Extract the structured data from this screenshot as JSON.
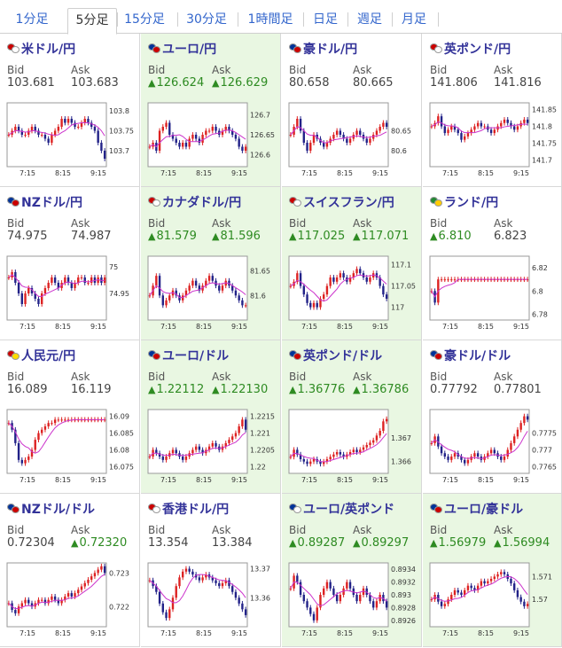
{
  "tabs": [
    {
      "label": "1分足",
      "active": false
    },
    {
      "label": "5分足",
      "active": true
    },
    {
      "label": "15分足",
      "active": false
    },
    {
      "label": "30分足",
      "active": false
    },
    {
      "label": "1時間足",
      "active": false
    },
    {
      "label": "日足",
      "active": false
    },
    {
      "label": "週足",
      "active": false
    },
    {
      "label": "月足",
      "active": false
    }
  ],
  "labels": {
    "bid": "Bid",
    "ask": "Ask"
  },
  "x_ticks": [
    "7:15",
    "8:15",
    "9:15"
  ],
  "colors": {
    "up_candle": "#dd2222",
    "down_candle": "#222288",
    "ma_line": "#cc33cc",
    "ma_line2": "#33aaaa",
    "highlight": "#e9f7e2"
  },
  "pairs": [
    {
      "name": "米ドル/円",
      "flags": [
        "#cc0000",
        "#ffffff"
      ],
      "bid": "103.681",
      "ask": "103.683",
      "bid_up": false,
      "ask_up": false,
      "hl": false,
      "chart_data": {
        "type": "candlestick",
        "y_ticks": [
          "103.8",
          "103.75",
          "103.7"
        ],
        "ylim": [
          103.66,
          103.82
        ],
        "close": [
          103.74,
          103.75,
          103.76,
          103.75,
          103.74,
          103.74,
          103.75,
          103.76,
          103.75,
          103.74,
          103.74,
          103.73,
          103.72,
          103.74,
          103.75,
          103.76,
          103.78,
          103.77,
          103.78,
          103.77,
          103.76,
          103.76,
          103.77,
          103.78,
          103.77,
          103.76,
          103.75,
          103.72,
          103.7,
          103.68
        ],
        "ma": true
      }
    },
    {
      "name": "ユーロ/円",
      "flags": [
        "#003399",
        "#cc0000"
      ],
      "bid": "126.624",
      "ask": "126.629",
      "bid_up": true,
      "ask_up": true,
      "hl": true,
      "chart_data": {
        "type": "candlestick",
        "y_ticks": [
          "126.7",
          "126.65",
          "126.6"
        ],
        "ylim": [
          126.57,
          126.73
        ],
        "close": [
          126.62,
          126.63,
          126.61,
          126.66,
          126.67,
          126.68,
          126.65,
          126.64,
          126.63,
          126.62,
          126.63,
          126.62,
          126.64,
          126.65,
          126.64,
          126.63,
          126.65,
          126.66,
          126.66,
          126.67,
          126.66,
          126.65,
          126.66,
          126.67,
          126.66,
          126.65,
          126.64,
          126.62,
          126.61,
          126.62
        ],
        "ma": true
      }
    },
    {
      "name": "豪ドル/円",
      "flags": [
        "#003399",
        "#cc0000"
      ],
      "bid": "80.658",
      "ask": "80.665",
      "bid_up": false,
      "ask_up": false,
      "hl": false,
      "chart_data": {
        "type": "candlestick",
        "y_ticks": [
          "80.65",
          "80.6"
        ],
        "ylim": [
          80.56,
          80.72
        ],
        "close": [
          80.64,
          80.66,
          80.68,
          80.65,
          80.62,
          80.6,
          80.62,
          80.64,
          80.63,
          80.62,
          80.61,
          80.62,
          80.63,
          80.64,
          80.65,
          80.64,
          80.63,
          80.62,
          80.63,
          80.64,
          80.65,
          80.64,
          80.63,
          80.62,
          80.63,
          80.64,
          80.65,
          80.66,
          80.67,
          80.66
        ],
        "ma": true
      }
    },
    {
      "name": "英ポンド/円",
      "flags": [
        "#cc0000",
        "#ffffff"
      ],
      "bid": "141.806",
      "ask": "141.816",
      "bid_up": false,
      "ask_up": false,
      "hl": false,
      "chart_data": {
        "type": "candlestick",
        "y_ticks": [
          "141.85",
          "141.8",
          "141.75",
          "141.7"
        ],
        "ylim": [
          141.68,
          141.87
        ],
        "close": [
          141.8,
          141.81,
          141.83,
          141.8,
          141.78,
          141.79,
          141.8,
          141.79,
          141.78,
          141.76,
          141.77,
          141.78,
          141.79,
          141.8,
          141.81,
          141.8,
          141.8,
          141.79,
          141.78,
          141.79,
          141.8,
          141.81,
          141.82,
          141.81,
          141.8,
          141.79,
          141.8,
          141.81,
          141.82,
          141.81
        ],
        "ma": true
      }
    },
    {
      "name": "NZドル/円",
      "flags": [
        "#003399",
        "#cc0000"
      ],
      "bid": "74.975",
      "ask": "74.987",
      "bid_up": false,
      "ask_up": false,
      "hl": false,
      "chart_data": {
        "type": "candlestick",
        "y_ticks": [
          "75",
          "74.95"
        ],
        "ylim": [
          74.9,
          75.02
        ],
        "close": [
          74.98,
          74.99,
          74.97,
          74.95,
          74.93,
          74.95,
          74.96,
          74.95,
          74.94,
          74.93,
          74.95,
          74.96,
          74.97,
          74.98,
          74.97,
          74.96,
          74.97,
          74.98,
          74.97,
          74.96,
          74.97,
          74.98,
          74.98,
          74.97,
          74.97,
          74.98,
          74.97,
          74.98,
          74.97,
          74.98
        ],
        "ma": true
      }
    },
    {
      "name": "カナダドル/円",
      "flags": [
        "#cc0000",
        "#ffffff"
      ],
      "bid": "81.579",
      "ask": "81.596",
      "bid_up": true,
      "ask_up": true,
      "hl": true,
      "chart_data": {
        "type": "candlestick",
        "y_ticks": [
          "81.65",
          "81.6"
        ],
        "ylim": [
          81.55,
          81.68
        ],
        "close": [
          81.6,
          81.62,
          81.64,
          81.6,
          81.58,
          81.59,
          81.6,
          81.61,
          81.6,
          81.59,
          81.6,
          81.61,
          81.62,
          81.63,
          81.62,
          81.61,
          81.62,
          81.63,
          81.64,
          81.63,
          81.62,
          81.61,
          81.62,
          81.63,
          81.62,
          81.61,
          81.6,
          81.59,
          81.58,
          81.58
        ],
        "ma": true
      }
    },
    {
      "name": "スイスフラン/円",
      "flags": [
        "#cc0000",
        "#ffffff"
      ],
      "bid": "117.025",
      "ask": "117.071",
      "bid_up": true,
      "ask_up": true,
      "hl": true,
      "chart_data": {
        "type": "candlestick",
        "y_ticks": [
          "117.1",
          "117.05",
          "117"
        ],
        "ylim": [
          116.97,
          117.12
        ],
        "close": [
          117.05,
          117.06,
          117.08,
          117.05,
          117.03,
          117.01,
          117.0,
          117.01,
          117.0,
          117.02,
          117.03,
          117.05,
          117.07,
          117.06,
          117.07,
          117.08,
          117.07,
          117.06,
          117.07,
          117.08,
          117.09,
          117.08,
          117.07,
          117.06,
          117.07,
          117.08,
          117.07,
          117.05,
          117.03,
          117.02
        ],
        "ma": true
      }
    },
    {
      "name": "ランド/円",
      "flags": [
        "#228833",
        "#ffcc00"
      ],
      "bid": "6.810",
      "ask": "6.823",
      "bid_up": true,
      "ask_up": false,
      "hl": false,
      "chart_data": {
        "type": "candlestick",
        "y_ticks": [
          "6.82",
          "6.8",
          "6.78"
        ],
        "ylim": [
          6.775,
          6.83
        ],
        "close": [
          6.8,
          6.79,
          6.81,
          6.81,
          6.81,
          6.81,
          6.81,
          6.81,
          6.81,
          6.81,
          6.81,
          6.81,
          6.81,
          6.81,
          6.81,
          6.81,
          6.81,
          6.81,
          6.81,
          6.81,
          6.81,
          6.81,
          6.81,
          6.81,
          6.81,
          6.81,
          6.81,
          6.81,
          6.81,
          6.81
        ],
        "ma": true
      }
    },
    {
      "name": "人民元/円",
      "flags": [
        "#cc0000",
        "#ffdd00"
      ],
      "bid": "16.089",
      "ask": "16.119",
      "bid_up": false,
      "ask_up": false,
      "hl": false,
      "chart_data": {
        "type": "candlestick",
        "y_ticks": [
          "16.09",
          "16.085",
          "16.08",
          "16.075"
        ],
        "ylim": [
          16.073,
          16.092
        ],
        "close": [
          16.088,
          16.086,
          16.082,
          16.077,
          16.076,
          16.077,
          16.078,
          16.08,
          16.083,
          16.085,
          16.086,
          16.087,
          16.088,
          16.088,
          16.089,
          16.089,
          16.089,
          16.089,
          16.089,
          16.089,
          16.089,
          16.089,
          16.089,
          16.089,
          16.089,
          16.089,
          16.089,
          16.089,
          16.089,
          16.089
        ],
        "ma": true
      }
    },
    {
      "name": "ユーロ/ドル",
      "flags": [
        "#003399",
        "#cc0000"
      ],
      "bid": "1.22112",
      "ask": "1.22130",
      "bid_up": true,
      "ask_up": true,
      "hl": true,
      "chart_data": {
        "type": "candlestick",
        "y_ticks": [
          "1.2215",
          "1.221",
          "1.2205",
          "1.22"
        ],
        "ylim": [
          1.2198,
          1.2217
        ],
        "close": [
          1.2203,
          1.2205,
          1.2204,
          1.2203,
          1.2202,
          1.2203,
          1.2204,
          1.2205,
          1.2204,
          1.2203,
          1.2202,
          1.2203,
          1.2204,
          1.2205,
          1.2206,
          1.2205,
          1.2204,
          1.2205,
          1.2206,
          1.2207,
          1.2206,
          1.2205,
          1.2206,
          1.2207,
          1.2208,
          1.2209,
          1.221,
          1.2212,
          1.2214,
          1.2211
        ],
        "ma": true
      }
    },
    {
      "name": "英ポンド/ドル",
      "flags": [
        "#003399",
        "#cc0000"
      ],
      "bid": "1.36776",
      "ask": "1.36786",
      "bid_up": true,
      "ask_up": true,
      "hl": true,
      "chart_data": {
        "type": "candlestick",
        "y_ticks": [
          "1.367",
          "1.366"
        ],
        "ylim": [
          1.3655,
          1.3682
        ],
        "close": [
          1.3662,
          1.3665,
          1.3663,
          1.3661,
          1.366,
          1.3659,
          1.366,
          1.3661,
          1.366,
          1.3659,
          1.366,
          1.3661,
          1.3662,
          1.3663,
          1.3664,
          1.3663,
          1.3662,
          1.3663,
          1.3664,
          1.3665,
          1.3664,
          1.3665,
          1.3666,
          1.3667,
          1.3668,
          1.3669,
          1.3671,
          1.3673,
          1.3677,
          1.3678
        ],
        "ma": true
      }
    },
    {
      "name": "豪ドル/ドル",
      "flags": [
        "#003399",
        "#cc0000"
      ],
      "bid": "0.77792",
      "ask": "0.77801",
      "bid_up": false,
      "ask_up": false,
      "hl": false,
      "chart_data": {
        "type": "candlestick",
        "y_ticks": [
          "0.7775",
          "0.777",
          "0.7765"
        ],
        "ylim": [
          0.7763,
          0.7782
        ],
        "close": [
          0.7772,
          0.7774,
          0.7771,
          0.7769,
          0.7768,
          0.7767,
          0.7768,
          0.7769,
          0.7768,
          0.7767,
          0.7766,
          0.7767,
          0.7768,
          0.7769,
          0.7768,
          0.7767,
          0.7768,
          0.7769,
          0.777,
          0.7769,
          0.7768,
          0.7767,
          0.7768,
          0.777,
          0.7772,
          0.7774,
          0.7776,
          0.7778,
          0.778,
          0.7779
        ],
        "ma": true
      }
    },
    {
      "name": "NZドル/ドル",
      "flags": [
        "#003399",
        "#cc0000"
      ],
      "bid": "0.72304",
      "ask": "0.72320",
      "bid_up": false,
      "ask_up": true,
      "hl": false,
      "chart_data": {
        "type": "candlestick",
        "y_ticks": [
          "0.723",
          "0.722"
        ],
        "ylim": [
          0.7214,
          0.7233
        ],
        "close": [
          0.7221,
          0.7219,
          0.7218,
          0.722,
          0.7221,
          0.7222,
          0.7221,
          0.722,
          0.7221,
          0.7222,
          0.7222,
          0.7221,
          0.7222,
          0.7223,
          0.7222,
          0.7221,
          0.7222,
          0.7223,
          0.7224,
          0.7223,
          0.7224,
          0.7225,
          0.7226,
          0.7227,
          0.7228,
          0.7229,
          0.723,
          0.7231,
          0.7232,
          0.723
        ],
        "ma": true
      }
    },
    {
      "name": "香港ドル/円",
      "flags": [
        "#cc0000",
        "#ffffff"
      ],
      "bid": "13.354",
      "ask": "13.384",
      "bid_up": false,
      "ask_up": false,
      "hl": false,
      "chart_data": {
        "type": "candlestick",
        "y_ticks": [
          "13.37",
          "13.36"
        ],
        "ylim": [
          13.35,
          13.372
        ],
        "close": [
          13.366,
          13.364,
          13.362,
          13.358,
          13.355,
          13.353,
          13.356,
          13.36,
          13.364,
          13.367,
          13.369,
          13.37,
          13.369,
          13.368,
          13.367,
          13.366,
          13.367,
          13.368,
          13.367,
          13.366,
          13.365,
          13.364,
          13.365,
          13.366,
          13.364,
          13.362,
          13.36,
          13.358,
          13.356,
          13.354
        ],
        "ma": true
      }
    },
    {
      "name": "ユーロ/英ポンド",
      "flags": [
        "#003399",
        "#ffffff"
      ],
      "bid": "0.89287",
      "ask": "0.89297",
      "bid_up": true,
      "ask_up": true,
      "hl": true,
      "chart_data": {
        "type": "candlestick",
        "y_ticks": [
          "0.8934",
          "0.8932",
          "0.893",
          "0.8928",
          "0.8926"
        ],
        "ylim": [
          0.8925,
          0.8935
        ],
        "close": [
          0.8931,
          0.8933,
          0.8932,
          0.893,
          0.8929,
          0.8928,
          0.8927,
          0.8926,
          0.8928,
          0.893,
          0.8931,
          0.8932,
          0.8931,
          0.893,
          0.8929,
          0.893,
          0.8931,
          0.8932,
          0.8931,
          0.893,
          0.8929,
          0.893,
          0.8931,
          0.893,
          0.8929,
          0.8928,
          0.8929,
          0.893,
          0.8929,
          0.8928
        ],
        "ma": true
      }
    },
    {
      "name": "ユーロ/豪ドル",
      "flags": [
        "#003399",
        "#cc0000"
      ],
      "bid": "1.56979",
      "ask": "1.56994",
      "bid_up": true,
      "ask_up": true,
      "hl": true,
      "chart_data": {
        "type": "candlestick",
        "y_ticks": [
          "1.571",
          "1.57"
        ],
        "ylim": [
          1.5688,
          1.5716
        ],
        "close": [
          1.57,
          1.5702,
          1.5699,
          1.5697,
          1.5698,
          1.57,
          1.5702,
          1.5704,
          1.5703,
          1.5702,
          1.5704,
          1.5706,
          1.5705,
          1.5704,
          1.5706,
          1.5708,
          1.5707,
          1.5708,
          1.5709,
          1.571,
          1.5711,
          1.5712,
          1.5711,
          1.5709,
          1.5707,
          1.5704,
          1.5701,
          1.5699,
          1.5697,
          1.5698
        ],
        "ma": true
      }
    }
  ]
}
